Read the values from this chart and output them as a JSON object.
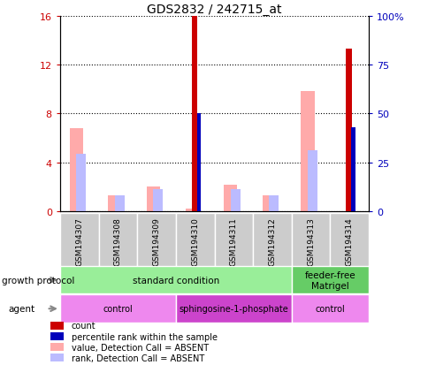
{
  "title": "GDS2832 / 242715_at",
  "samples": [
    "GSM194307",
    "GSM194308",
    "GSM194309",
    "GSM194310",
    "GSM194311",
    "GSM194312",
    "GSM194313",
    "GSM194314"
  ],
  "count_values": [
    0,
    0,
    0,
    16,
    0,
    0,
    0,
    13.3
  ],
  "percentile_rank": [
    0,
    0,
    0,
    50,
    0,
    0,
    0,
    43
  ],
  "value_absent": [
    6.8,
    1.3,
    2.0,
    0.2,
    2.2,
    1.3,
    9.8,
    0
  ],
  "rank_absent": [
    4.7,
    1.3,
    1.8,
    0.1,
    1.8,
    1.3,
    5.0,
    0
  ],
  "ylim_left": [
    0,
    16
  ],
  "ylim_right": [
    0,
    100
  ],
  "yticks_left": [
    0,
    4,
    8,
    12,
    16
  ],
  "yticks_right": [
    0,
    25,
    50,
    75,
    100
  ],
  "ytick_labels_left": [
    "0",
    "4",
    "8",
    "12",
    "16"
  ],
  "ytick_labels_right": [
    "0",
    "25",
    "50",
    "75",
    "100%"
  ],
  "growth_protocol": [
    {
      "label": "standard condition",
      "start": 0,
      "end": 6,
      "color": "#99ee99"
    },
    {
      "label": "feeder-free\nMatrigel",
      "start": 6,
      "end": 8,
      "color": "#66cc66"
    }
  ],
  "agent": [
    {
      "label": "control",
      "start": 0,
      "end": 3,
      "color": "#ee88ee"
    },
    {
      "label": "sphingosine-1-phosphate",
      "start": 3,
      "end": 6,
      "color": "#cc44cc"
    },
    {
      "label": "control",
      "start": 6,
      "end": 8,
      "color": "#ee88ee"
    }
  ],
  "growth_label": "growth protocol",
  "agent_label": "agent",
  "color_count": "#cc0000",
  "color_percentile": "#0000bb",
  "color_value_absent": "#ffaaaa",
  "color_rank_absent": "#bbbbff",
  "legend_items": [
    {
      "label": "count",
      "color": "#cc0000"
    },
    {
      "label": "percentile rank within the sample",
      "color": "#0000bb"
    },
    {
      "label": "value, Detection Call = ABSENT",
      "color": "#ffaaaa"
    },
    {
      "label": "rank, Detection Call = ABSENT",
      "color": "#bbbbff"
    }
  ]
}
